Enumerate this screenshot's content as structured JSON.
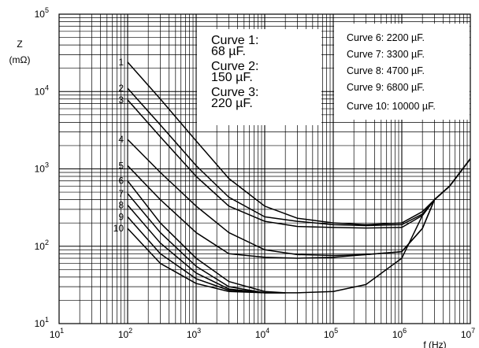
{
  "chart_data": {
    "type": "line",
    "x_scale": "log",
    "y_scale": "log",
    "xlim": [
      10,
      10000000
    ],
    "ylim": [
      10,
      100000
    ],
    "xlabel": "f (Hz)",
    "ylabel": "Z",
    "ylabel_unit": "(mΩ)",
    "x_ticks": [
      {
        "base": "10",
        "exp": "1"
      },
      {
        "base": "10",
        "exp": "2"
      },
      {
        "base": "10",
        "exp": "3"
      },
      {
        "base": "10",
        "exp": "4"
      },
      {
        "base": "10",
        "exp": "5"
      },
      {
        "base": "10",
        "exp": "6"
      },
      {
        "base": "10",
        "exp": "7"
      }
    ],
    "y_ticks": [
      {
        "base": "10",
        "exp": "1"
      },
      {
        "base": "10",
        "exp": "2"
      },
      {
        "base": "10",
        "exp": "3"
      },
      {
        "base": "10",
        "exp": "4"
      },
      {
        "base": "10",
        "exp": "5"
      }
    ],
    "grid": true,
    "legend_left": [
      {
        "line1": "Curve 1:",
        "line2": "68 µF."
      },
      {
        "line1": "Curve 2:",
        "line2": "150 µF."
      },
      {
        "line1": "Curve 3:",
        "line2": "220 µF."
      }
    ],
    "legend_right": [
      "Curve 6: 2200 µF.",
      "Curve 7: 3300 µF.",
      "Curve 8: 4700 µF.",
      "Curve 9: 6800 µF.",
      "Curve 10: 10000 µF."
    ],
    "series": [
      {
        "name": "1",
        "x": [
          100,
          300,
          1000,
          3000,
          10000,
          30000,
          100000,
          300000,
          1000000,
          2000000,
          3000000,
          5000000,
          10000000
        ],
        "y": [
          24000,
          8000,
          2300,
          750,
          330,
          230,
          200,
          190,
          200,
          280,
          400,
          600,
          1350
        ]
      },
      {
        "name": "2",
        "x": [
          100,
          300,
          1000,
          3000,
          10000,
          30000,
          100000,
          300000,
          1000000,
          2000000,
          3000000,
          5000000,
          10000000
        ],
        "y": [
          11000,
          3700,
          1100,
          430,
          240,
          210,
          190,
          185,
          190,
          260,
          400,
          600,
          1350
        ]
      },
      {
        "name": "3",
        "x": [
          100,
          300,
          1000,
          3000,
          10000,
          30000,
          100000,
          300000,
          1000000,
          2000000,
          3000000,
          5000000,
          10000000
        ],
        "y": [
          7800,
          2600,
          800,
          330,
          210,
          180,
          175,
          172,
          175,
          250,
          400,
          600,
          1350
        ]
      },
      {
        "name": "4",
        "x": [
          100,
          300,
          1000,
          3000,
          10000,
          30000,
          100000,
          300000,
          1000000,
          2000000,
          3000000,
          5000000,
          10000000
        ],
        "y": [
          2400,
          900,
          330,
          150,
          90,
          78,
          76,
          78,
          85,
          170,
          400,
          600,
          1350
        ]
      },
      {
        "name": "5",
        "x": [
          100,
          300,
          1000,
          3000,
          10000,
          30000,
          100000,
          300000,
          1000000,
          2000000,
          3000000,
          5000000,
          10000000
        ],
        "y": [
          1100,
          400,
          150,
          80,
          72,
          70,
          72,
          78,
          85,
          170,
          400,
          600,
          1350
        ]
      },
      {
        "name": "6",
        "x": [
          100,
          300,
          1000,
          3000,
          10000,
          20000
        ],
        "y": [
          700,
          200,
          70,
          35,
          26,
          25
        ]
      },
      {
        "name": "7",
        "x": [
          100,
          300,
          1000,
          3000,
          10000,
          20000
        ],
        "y": [
          480,
          150,
          55,
          30,
          25,
          25
        ]
      },
      {
        "name": "8",
        "x": [
          100,
          300,
          1000,
          3000,
          10000,
          20000
        ],
        "y": [
          340,
          110,
          45,
          28,
          25,
          25
        ]
      },
      {
        "name": "9",
        "x": [
          100,
          300,
          1000,
          3000,
          10000,
          20000
        ],
        "y": [
          240,
          80,
          38,
          27,
          25,
          25
        ]
      },
      {
        "name": "10",
        "x": [
          100,
          300,
          1000,
          3000,
          10000,
          30000,
          100000,
          300000,
          1000000,
          2000000,
          3000000,
          5000000,
          10000000
        ],
        "y": [
          170,
          60,
          33,
          26,
          25,
          25,
          26,
          32,
          70,
          250,
          400,
          600,
          1350
        ]
      }
    ]
  }
}
